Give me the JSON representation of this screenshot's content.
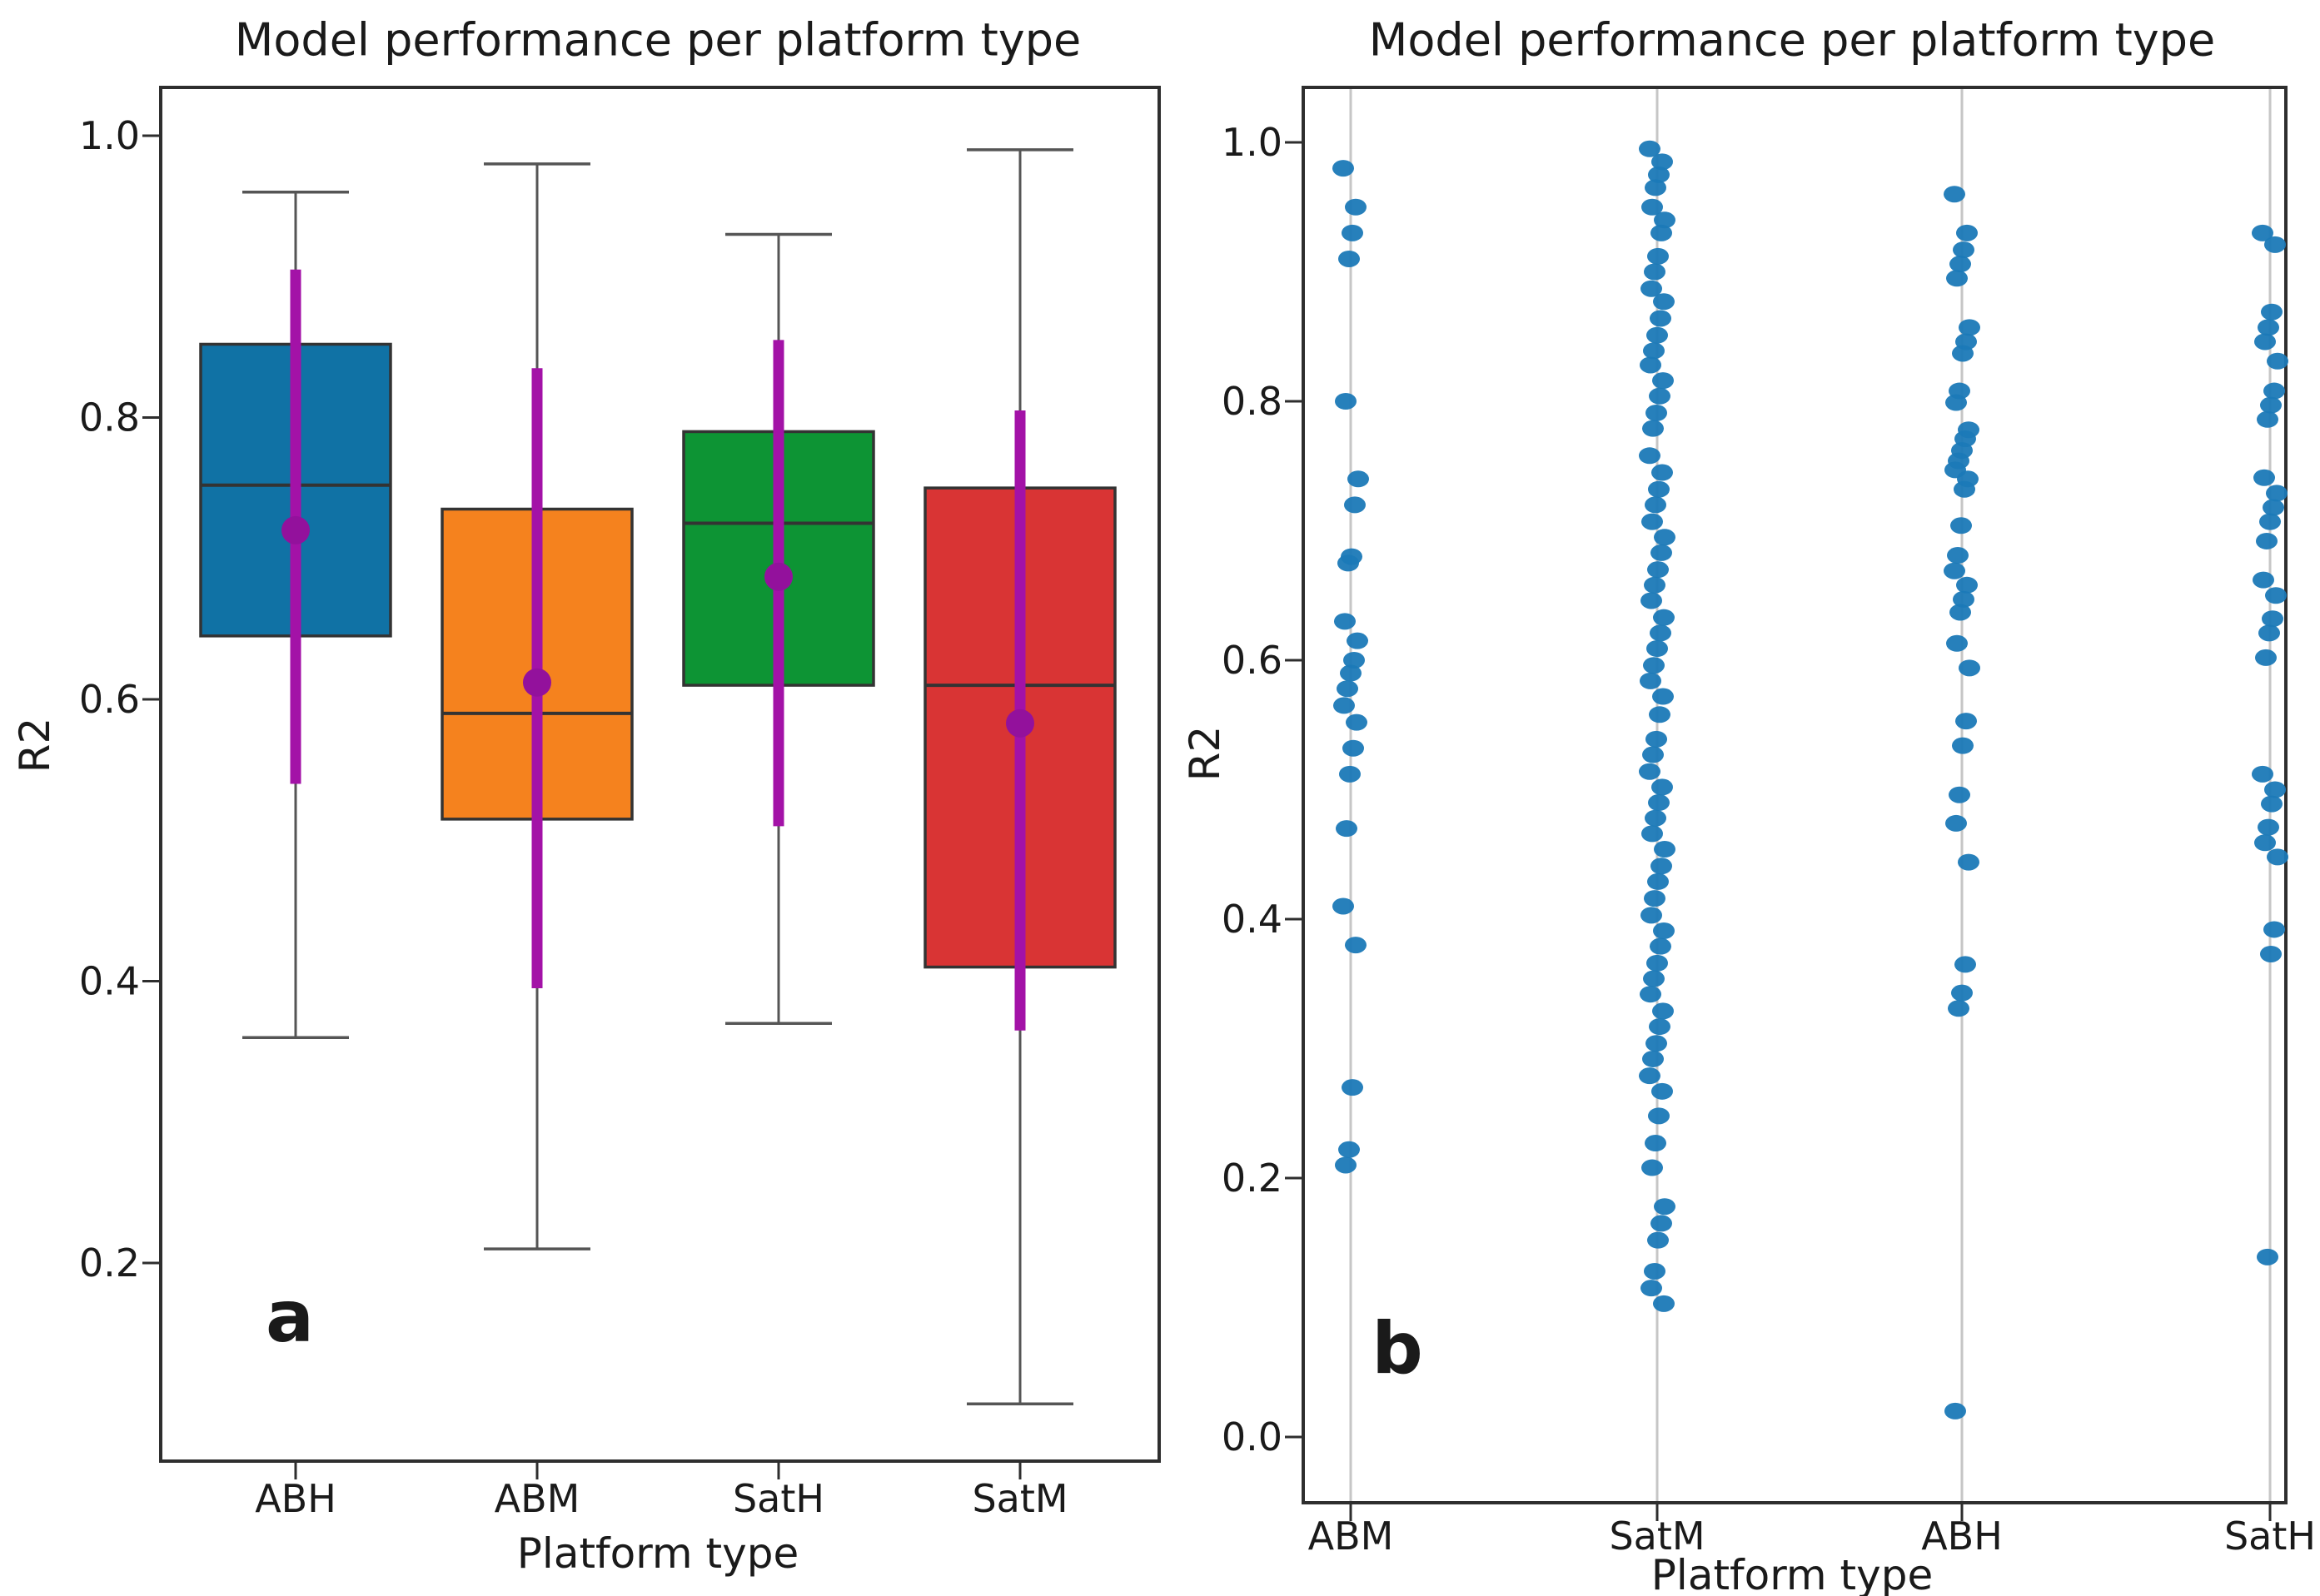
{
  "figure": {
    "background": "#ffffff",
    "text_color": "#1a1a1a"
  },
  "colors": {
    "box_edge": "#333333",
    "whisker": "#555555",
    "spine": "#2e2e2e",
    "errorbar_purple": "#a312a7",
    "mean_dot_purple": "#93119c",
    "strip_dot_blue": "#1b79b7",
    "gridline": "#c6c6c6",
    "box_fill_abh": "#1072a5",
    "box_fill_abm": "#f5821e",
    "box_fill_sath": "#0d9434",
    "box_fill_satm": "#d93434"
  },
  "chart_data": [
    {
      "type": "box",
      "title": "Model performance per platform type",
      "xlabel": "Platform type",
      "ylabel": "R2",
      "annotation": "a",
      "categories": [
        "ABH",
        "ABM",
        "SatH",
        "SatM"
      ],
      "ytick_labels": [
        "1.0",
        "0.8",
        "0.6",
        "0.4",
        "0.2"
      ],
      "ytick_values": [
        1.0,
        0.8,
        0.6,
        0.4,
        0.2
      ],
      "ylim": [
        0.059,
        1.037
      ],
      "grid": false,
      "series": [
        {
          "name": "ABH",
          "color": "#1072a5",
          "whislo": 0.36,
          "q1": 0.645,
          "med": 0.752,
          "q3": 0.852,
          "whishi": 0.96,
          "mean": 0.72,
          "err_lo": 0.54,
          "err_hi": 0.905
        },
        {
          "name": "ABM",
          "color": "#f5821e",
          "whislo": 0.21,
          "q1": 0.515,
          "med": 0.59,
          "q3": 0.735,
          "whishi": 0.98,
          "mean": 0.612,
          "err_lo": 0.395,
          "err_hi": 0.835
        },
        {
          "name": "SatH",
          "color": "#0d9434",
          "whislo": 0.37,
          "q1": 0.61,
          "med": 0.725,
          "q3": 0.79,
          "whishi": 0.93,
          "mean": 0.687,
          "err_lo": 0.51,
          "err_hi": 0.855
        },
        {
          "name": "SatM",
          "color": "#d93434",
          "whislo": 0.1,
          "q1": 0.41,
          "med": 0.61,
          "q3": 0.75,
          "whishi": 0.99,
          "mean": 0.583,
          "err_lo": 0.365,
          "err_hi": 0.805
        }
      ]
    },
    {
      "type": "scatter",
      "title": "Model performance per platform type",
      "xlabel": "Platform type",
      "ylabel": "R2",
      "annotation": "b",
      "categories": [
        "ABM",
        "SatM",
        "ABH",
        "SatH"
      ],
      "ytick_labels": [
        "1.0",
        "0.8",
        "0.6",
        "0.4",
        "0.2",
        "0.0"
      ],
      "ytick_values": [
        1.0,
        0.8,
        0.6,
        0.4,
        0.2,
        0.0
      ],
      "ylim": [
        -0.048,
        1.037
      ],
      "grid": true,
      "marker_color": "#1b79b7",
      "series": [
        {
          "name": "ABM",
          "values": [
            0.98,
            0.95,
            0.93,
            0.91,
            0.8,
            0.74,
            0.72,
            0.68,
            0.675,
            0.63,
            0.615,
            0.6,
            0.59,
            0.578,
            0.565,
            0.552,
            0.532,
            0.512,
            0.47,
            0.41,
            0.38,
            0.27,
            0.222,
            0.21
          ]
        },
        {
          "name": "SatM",
          "values": [
            0.995,
            0.985,
            0.975,
            0.965,
            0.95,
            0.94,
            0.93,
            0.912,
            0.9,
            0.887,
            0.877,
            0.864,
            0.851,
            0.839,
            0.828,
            0.816,
            0.804,
            0.791,
            0.779,
            0.758,
            0.745,
            0.732,
            0.72,
            0.707,
            0.695,
            0.683,
            0.67,
            0.658,
            0.646,
            0.633,
            0.621,
            0.609,
            0.596,
            0.584,
            0.572,
            0.558,
            0.539,
            0.527,
            0.514,
            0.502,
            0.49,
            0.478,
            0.466,
            0.454,
            0.441,
            0.429,
            0.416,
            0.403,
            0.391,
            0.379,
            0.366,
            0.354,
            0.342,
            0.329,
            0.317,
            0.304,
            0.292,
            0.279,
            0.267,
            0.248,
            0.227,
            0.208,
            0.178,
            0.165,
            0.152,
            0.128,
            0.115,
            0.103
          ]
        },
        {
          "name": "ABH",
          "values": [
            0.96,
            0.93,
            0.917,
            0.906,
            0.895,
            0.857,
            0.846,
            0.837,
            0.808,
            0.799,
            0.778,
            0.771,
            0.762,
            0.754,
            0.747,
            0.74,
            0.732,
            0.704,
            0.681,
            0.669,
            0.658,
            0.647,
            0.637,
            0.613,
            0.594,
            0.553,
            0.534,
            0.496,
            0.474,
            0.444,
            0.365,
            0.343,
            0.331,
            0.02
          ]
        },
        {
          "name": "SatH",
          "values": [
            0.93,
            0.921,
            0.869,
            0.857,
            0.846,
            0.831,
            0.808,
            0.797,
            0.786,
            0.741,
            0.729,
            0.718,
            0.707,
            0.692,
            0.662,
            0.65,
            0.632,
            0.621,
            0.602,
            0.512,
            0.5,
            0.489,
            0.471,
            0.459,
            0.448,
            0.392,
            0.373,
            0.139
          ]
        }
      ]
    }
  ]
}
